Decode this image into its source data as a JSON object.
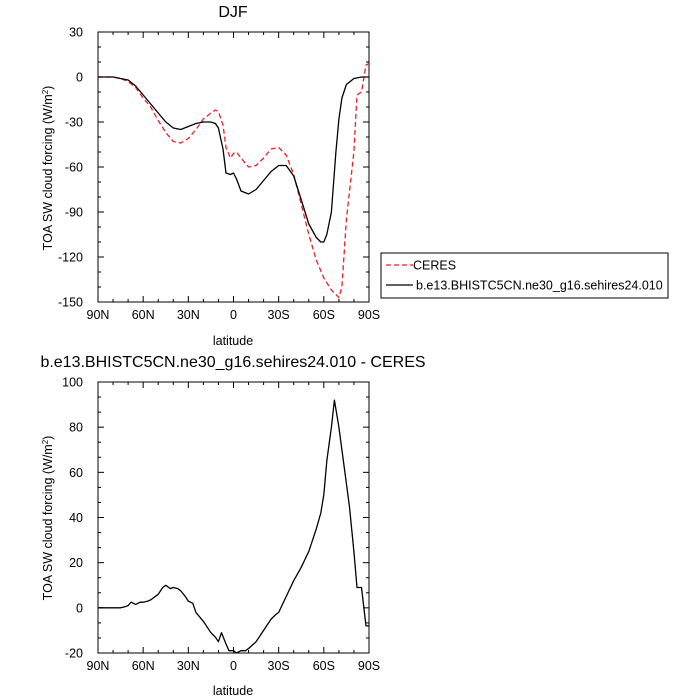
{
  "chart_data": [
    {
      "type": "line",
      "title": "DJF",
      "xlabel": "latitude",
      "ylabel": "TOA SW cloud forcing (W/m",
      "ylabel_sup": "2",
      "ylabel_end": ")",
      "xlim": [
        90,
        -90
      ],
      "ylim": [
        -150,
        30
      ],
      "xticks": [
        90,
        60,
        30,
        0,
        -30,
        -60,
        -90
      ],
      "xtick_labels": [
        "90N",
        "60N",
        "30N",
        "0",
        "30S",
        "60S",
        "90S"
      ],
      "yticks": [
        30,
        0,
        -30,
        -60,
        -90,
        -120,
        -150
      ],
      "ytick_labels": [
        "30",
        "0",
        "-30",
        "-60",
        "-90",
        "-120",
        "-150"
      ],
      "legend_position": "outside-right",
      "series": [
        {
          "name": "CERES",
          "color": "#e8202a",
          "dash": true,
          "x": [
            90,
            80,
            75,
            70,
            65,
            60,
            55,
            50,
            45,
            40,
            35,
            30,
            25,
            20,
            15,
            12,
            10,
            7,
            5,
            2,
            0,
            -2,
            -5,
            -10,
            -15,
            -20,
            -25,
            -30,
            -35,
            -40,
            -45,
            -50,
            -55,
            -60,
            -65,
            -70,
            -72,
            -75,
            -80,
            -82,
            -85,
            -88,
            -90
          ],
          "y": [
            0,
            0,
            -1,
            -3,
            -7,
            -14,
            -20,
            -29,
            -37,
            -43,
            -44,
            -41,
            -35,
            -28,
            -24,
            -22,
            -23,
            -32,
            -47,
            -54,
            -51,
            -50,
            -54,
            -60,
            -59,
            -54,
            -48,
            -47,
            -52,
            -65,
            -85,
            -105,
            -122,
            -134,
            -142,
            -147,
            -140,
            -95,
            -50,
            -12,
            -10,
            8,
            9
          ]
        },
        {
          "name": "b.e13.BHISTC5CN.ne30_g16.sehires24.010",
          "color": "#000000",
          "dash": false,
          "x": [
            90,
            80,
            75,
            70,
            65,
            60,
            55,
            50,
            45,
            40,
            35,
            30,
            25,
            20,
            15,
            12,
            10,
            7,
            5,
            2,
            0,
            -2,
            -5,
            -10,
            -15,
            -20,
            -25,
            -30,
            -35,
            -40,
            -45,
            -50,
            -55,
            -58,
            -60,
            -62,
            -65,
            -68,
            -70,
            -72,
            -75,
            -80,
            -85,
            -90
          ],
          "y": [
            0,
            0,
            -1,
            -2,
            -6,
            -12,
            -18,
            -24,
            -30,
            -34,
            -35,
            -33,
            -31,
            -30,
            -30,
            -31,
            -34,
            -48,
            -64,
            -65,
            -64,
            -68,
            -76,
            -78,
            -75,
            -69,
            -63,
            -59,
            -59,
            -66,
            -82,
            -98,
            -107,
            -110,
            -110,
            -105,
            -90,
            -50,
            -28,
            -14,
            -5,
            -1,
            0,
            0
          ]
        }
      ]
    },
    {
      "type": "line",
      "title": "b.e13.BHISTC5CN.ne30_g16.sehires24.010 - CERES",
      "xlabel": "latitude",
      "ylabel": "TOA SW cloud forcing (W/m",
      "ylabel_sup": "2",
      "ylabel_end": ")",
      "xlim": [
        90,
        -90
      ],
      "ylim": [
        -20,
        100
      ],
      "xticks": [
        90,
        60,
        30,
        0,
        -30,
        -60,
        -90
      ],
      "xtick_labels": [
        "90N",
        "60N",
        "30N",
        "0",
        "30S",
        "60S",
        "90S"
      ],
      "yticks": [
        100,
        80,
        60,
        40,
        20,
        0,
        -20
      ],
      "ytick_labels": [
        "100",
        "80",
        "60",
        "40",
        "20",
        "0",
        "-20"
      ],
      "series": [
        {
          "color": "#000000",
          "dash": false,
          "x": [
            90,
            85,
            80,
            75,
            72,
            70,
            68,
            65,
            62,
            60,
            57,
            55,
            50,
            47,
            45,
            42,
            40,
            37,
            35,
            32,
            30,
            27,
            25,
            20,
            17,
            15,
            12,
            10,
            8,
            5,
            3,
            0,
            -2,
            -5,
            -8,
            -10,
            -15,
            -20,
            -25,
            -28,
            -30,
            -35,
            -40,
            -45,
            -50,
            -55,
            -58,
            -60,
            -62,
            -65,
            -67,
            -70,
            -72,
            -75,
            -77,
            -80,
            -82,
            -85,
            -88,
            -90
          ],
          "y": [
            0,
            0,
            0,
            0,
            0.5,
            1,
            2.5,
            1.5,
            2.5,
            2.5,
            3,
            3.5,
            6,
            9,
            10,
            8.5,
            9,
            8.5,
            7.5,
            5,
            3,
            2,
            -2,
            -6,
            -9,
            -11,
            -13,
            -15,
            -11,
            -16,
            -19,
            -19,
            -20,
            -19,
            -19,
            -18,
            -15,
            -10,
            -5,
            -3,
            -2,
            5,
            12,
            18,
            25,
            35,
            42,
            50,
            65,
            80,
            92,
            80,
            70,
            55,
            45,
            25,
            9,
            9,
            -8,
            -8
          ]
        }
      ]
    }
  ]
}
